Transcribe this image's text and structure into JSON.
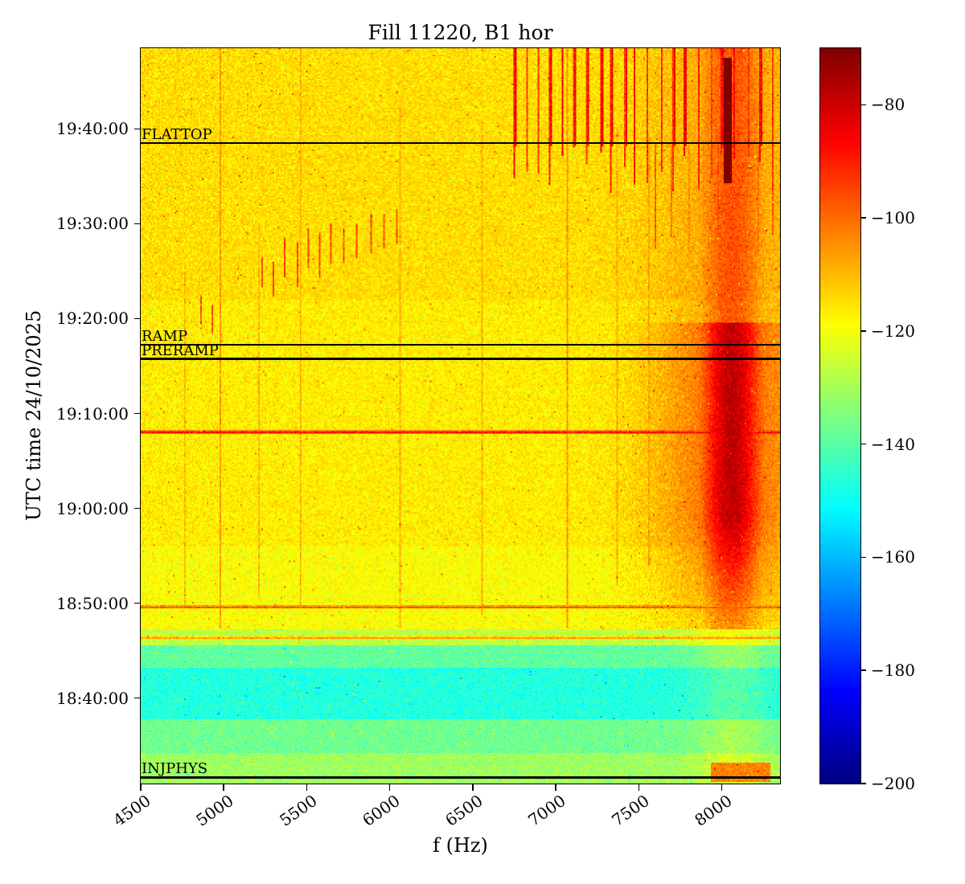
{
  "chart_data": {
    "type": "heatmap",
    "title": "Fill 11220, B1 hor",
    "xlabel": "f (Hz)",
    "ylabel": "UTC time 24/10/2025",
    "colormap": "jet",
    "x_range_hz": [
      4500,
      8350
    ],
    "x_tick_hz": [
      4500,
      5000,
      5500,
      6000,
      6500,
      7000,
      7500,
      8000
    ],
    "x_tick_labels": [
      "4500",
      "5000",
      "5500",
      "6000",
      "6500",
      "7000",
      "7500",
      "8000"
    ],
    "time_range_min": [
      1111,
      1188.5
    ],
    "y_tick_min": [
      1120,
      1130,
      1140,
      1150,
      1160,
      1170,
      1180
    ],
    "y_tick_labels": [
      "18:40:00",
      "18:50:00",
      "19:00:00",
      "19:10:00",
      "19:20:00",
      "19:30:00",
      "19:40:00"
    ],
    "colorbar": {
      "vmin": -200,
      "vmax": -70,
      "tick_values": [
        -80,
        -100,
        -120,
        -140,
        -160,
        -180,
        -200
      ],
      "tick_labels": [
        "−80",
        "−100",
        "−120",
        "−140",
        "−160",
        "−180",
        "−200"
      ]
    },
    "annotations": [
      {
        "label": "FLATTOP",
        "time": "19:38:30",
        "t_min": 1178.5
      },
      {
        "label": "RAMP",
        "time": "19:17:15",
        "t_min": 1157.25
      },
      {
        "label": "PRERAMP",
        "time": "19:15:45",
        "t_min": 1155.75
      },
      {
        "label": "INJPHYS",
        "time": "18:31:40",
        "t_min": 1111.65
      }
    ],
    "time_bands_dB": [
      {
        "t0": 1111.0,
        "t1": 1114.2,
        "level": -131
      },
      {
        "t0": 1114.2,
        "t1": 1117.8,
        "level": -137
      },
      {
        "t0": 1117.8,
        "t1": 1123.2,
        "level": -147
      },
      {
        "t0": 1123.2,
        "t1": 1125.6,
        "level": -139
      },
      {
        "t0": 1125.6,
        "t1": 1127.2,
        "level": -127
      },
      {
        "t0": 1127.2,
        "t1": 1136.0,
        "level": -119
      },
      {
        "t0": 1136.0,
        "t1": 1162.0,
        "level": -116.5
      },
      {
        "t0": 1162.0,
        "t1": 1188.5,
        "level": -114.5
      }
    ],
    "hotspot": {
      "f_center": 8060,
      "f_sigma": 140,
      "halo_sigma": 320,
      "peak_dB": -78,
      "halo_dB": -99,
      "t_rise0": 1127.2,
      "t_rise1": 1139,
      "t_full0": 1139,
      "t_full1": 1159.5,
      "tail_intensity": 0.5
    },
    "dark_line": {
      "f0": 8012,
      "f1": 8050,
      "t0": 1174.5,
      "t1": 1187.5,
      "dB": -66
    },
    "top_streaks": {
      "f_start": 6740,
      "f_end": 8330,
      "spacing": 74,
      "t0": 1178.3,
      "t1": 1188.5,
      "dB": -90
    },
    "mid_right_streaks": {
      "f_start": 7610,
      "f_end": 8340,
      "spacing": 88,
      "t0": 1169.5,
      "t1": 1178.3,
      "dB": -100
    },
    "vertical_streaks": [
      {
        "f": 4975,
        "t0": 1127.5,
        "t1": 1188.5,
        "dB": -106
      },
      {
        "f": 5455,
        "t0": 1130.0,
        "t1": 1188.5,
        "dB": -108
      },
      {
        "f": 6055,
        "t0": 1127.5,
        "t1": 1183.0,
        "dB": -109
      },
      {
        "f": 6555,
        "t0": 1129.0,
        "t1": 1181.0,
        "dB": -109
      },
      {
        "f": 7060,
        "t0": 1127.5,
        "t1": 1188.5,
        "dB": -105
      },
      {
        "f": 7365,
        "t0": 1132.0,
        "t1": 1180.0,
        "dB": -108
      },
      {
        "f": 7560,
        "t0": 1134.0,
        "t1": 1179.0,
        "dB": -107
      },
      {
        "f": 4760,
        "t0": 1130.0,
        "t1": 1165.0,
        "dB": -110
      },
      {
        "f": 5210,
        "t0": 1131.0,
        "t1": 1170.0,
        "dB": -110
      }
    ],
    "dash_streaks": [
      {
        "f": 4855,
        "t0": 1159.5,
        "t1": 1162.5,
        "dB": -96
      },
      {
        "f": 4925,
        "t0": 1158.5,
        "t1": 1161.5,
        "dB": -97
      },
      {
        "f": 5225,
        "t0": 1163.5,
        "t1": 1166.5,
        "dB": -96
      },
      {
        "f": 5295,
        "t0": 1162.5,
        "t1": 1166.0,
        "dB": -96
      },
      {
        "f": 5365,
        "t0": 1164.5,
        "t1": 1168.5,
        "dB": -95
      },
      {
        "f": 5435,
        "t0": 1163.5,
        "t1": 1168.0,
        "dB": -96
      },
      {
        "f": 5505,
        "t0": 1165.5,
        "t1": 1169.5,
        "dB": -95
      },
      {
        "f": 5575,
        "t0": 1164.5,
        "t1": 1169.0,
        "dB": -96
      },
      {
        "f": 5645,
        "t0": 1166.0,
        "t1": 1170.0,
        "dB": -96
      },
      {
        "f": 5720,
        "t0": 1166.0,
        "t1": 1169.5,
        "dB": -97
      },
      {
        "f": 5800,
        "t0": 1166.5,
        "t1": 1170.0,
        "dB": -96
      },
      {
        "f": 5880,
        "t0": 1167.0,
        "t1": 1171.0,
        "dB": -97
      },
      {
        "f": 5960,
        "t0": 1167.5,
        "t1": 1171.0,
        "dB": -97
      },
      {
        "f": 6040,
        "t0": 1168.0,
        "t1": 1171.5,
        "dB": -97
      }
    ],
    "horizontal_lines": [
      {
        "t": 1148.2,
        "dB": -95,
        "f0": 4500,
        "f1": 8350
      },
      {
        "t": 1129.8,
        "dB": -106,
        "f0": 4500,
        "f1": 8350
      },
      {
        "t": 1126.6,
        "dB": -115,
        "f0": 4500,
        "f1": 8350
      }
    ],
    "bottom_patch": {
      "f0": 7930,
      "f1": 8280,
      "t0": 1111.3,
      "t1": 1113.2,
      "dB": -103
    },
    "noise_dB": 6.5,
    "seed": 20251024
  }
}
